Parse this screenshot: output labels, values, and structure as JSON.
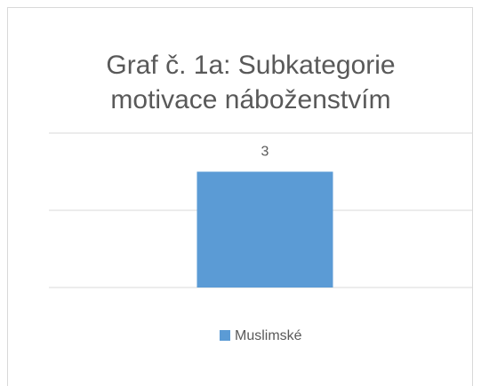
{
  "chart_data": {
    "type": "bar",
    "title": [
      "Graf č. 1a: Subkategorie",
      "motivace náboženstvím"
    ],
    "categories": [
      null
    ],
    "series": [
      {
        "name": "Muslimské",
        "color": "#5b9bd5",
        "values": [
          3
        ]
      }
    ],
    "ylim": [
      0,
      4
    ],
    "yticks": [
      0,
      2,
      4
    ],
    "grid": true,
    "legend": "bottom"
  }
}
